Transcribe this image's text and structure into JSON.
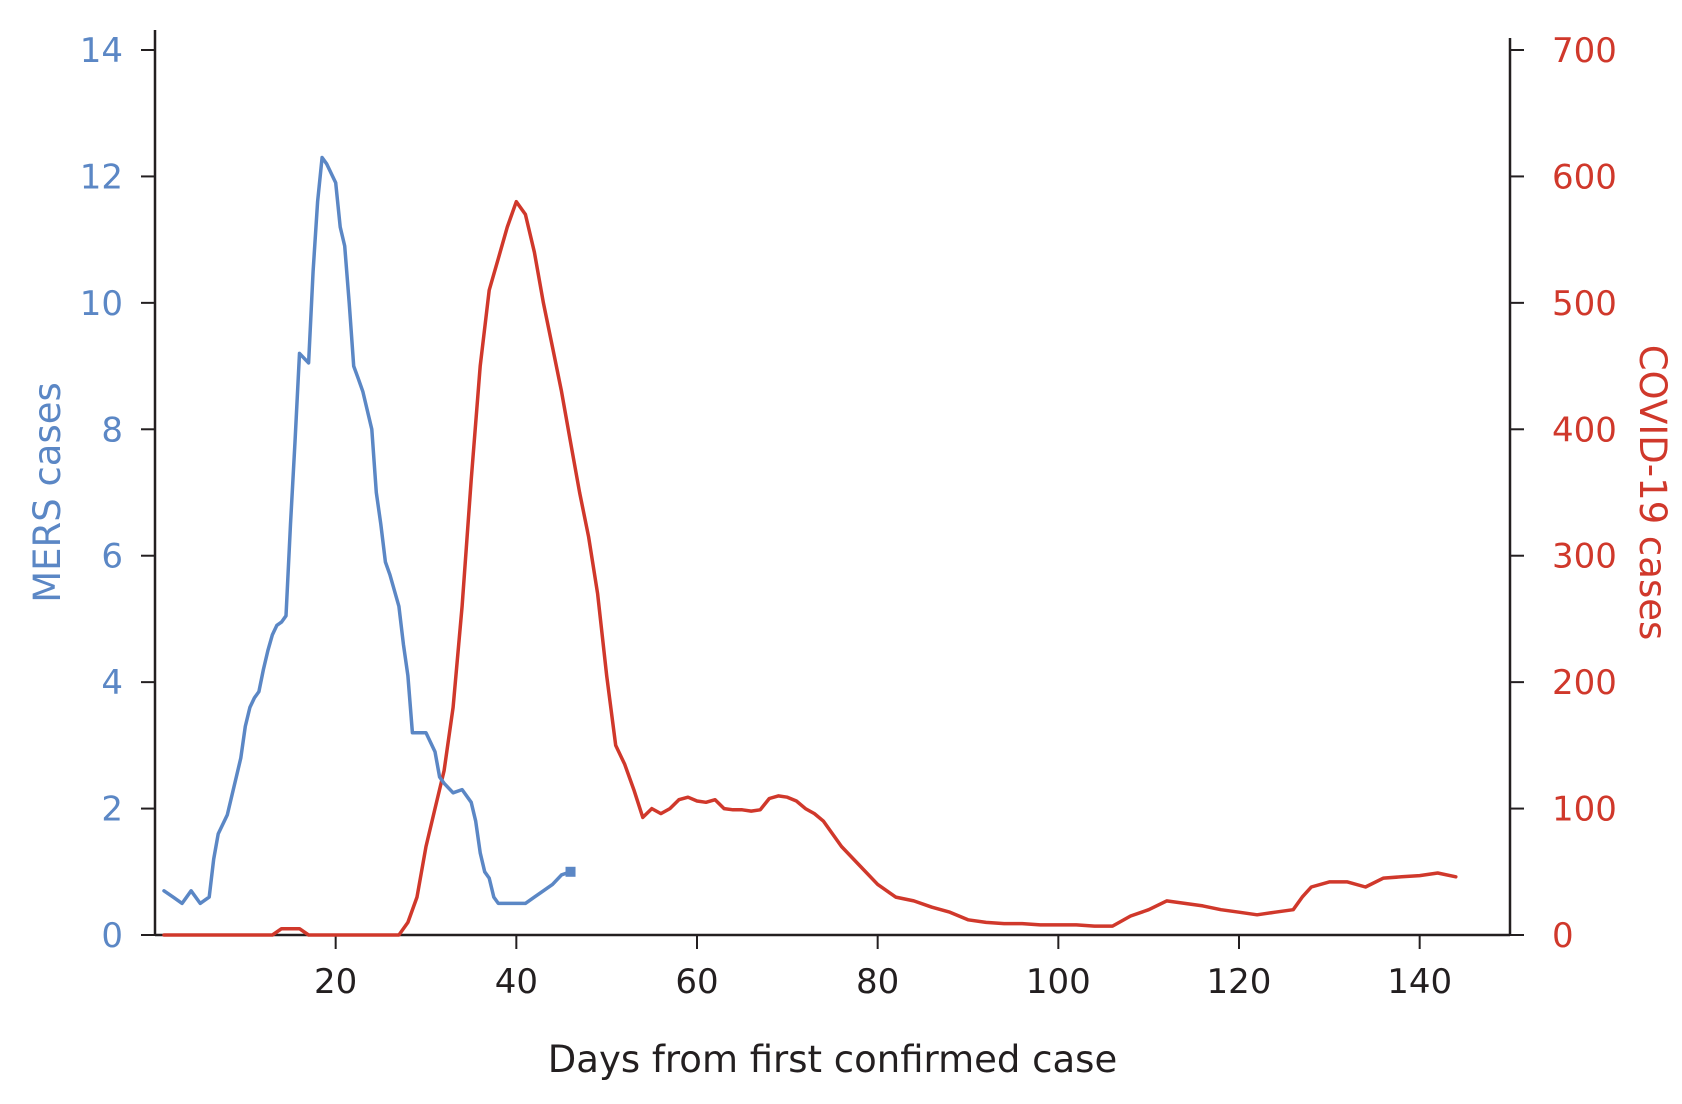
{
  "chart_data": {
    "type": "line",
    "xlabel": "Days from first confirmed case",
    "xlim": [
      0,
      150
    ],
    "xticks": [
      20,
      40,
      60,
      80,
      100,
      120,
      140
    ],
    "left_axis": {
      "label": "MERS cases",
      "ylim": [
        0,
        14
      ],
      "ticks": [
        0,
        2,
        4,
        6,
        8,
        10,
        12,
        14
      ],
      "color": "#5b87c5"
    },
    "right_axis": {
      "label": "COVID-19 cases",
      "ylim": [
        0,
        700
      ],
      "ticks": [
        0,
        100,
        200,
        300,
        400,
        500,
        600,
        700
      ],
      "color": "#d0382b"
    },
    "axis_color": "#231f20",
    "series": [
      {
        "name": "MERS cases",
        "axis": "left",
        "color": "#5b87c5",
        "end_marker": "square",
        "x": [
          1,
          2,
          3,
          4,
          5,
          6,
          6.5,
          7,
          8,
          8.5,
          9,
          9.5,
          10,
          10.5,
          11,
          11.5,
          12,
          12.5,
          13,
          13.5,
          14,
          14.5,
          15,
          15.5,
          16,
          17,
          17.5,
          18,
          18.5,
          19,
          20,
          20.5,
          21,
          21.5,
          22,
          22.5,
          23,
          24,
          24.5,
          25,
          25.5,
          26,
          27,
          27.5,
          28,
          28.5,
          29,
          29.5,
          30,
          31,
          31.5,
          32,
          33,
          34,
          35,
          35.5,
          36,
          36.5,
          37,
          37.5,
          38,
          39,
          40,
          41,
          42,
          43,
          44,
          45,
          46
        ],
        "values": [
          0.7,
          0.6,
          0.5,
          0.7,
          0.5,
          0.6,
          1.2,
          1.6,
          1.9,
          2.2,
          2.5,
          2.8,
          3.3,
          3.6,
          3.75,
          3.85,
          4.2,
          4.5,
          4.75,
          4.9,
          4.95,
          5.05,
          6.5,
          7.8,
          9.2,
          9.05,
          10.5,
          11.6,
          12.3,
          12.2,
          11.9,
          11.2,
          10.9,
          10.0,
          9.0,
          8.8,
          8.6,
          8.0,
          7.0,
          6.5,
          5.9,
          5.7,
          5.2,
          4.6,
          4.1,
          3.2,
          3.2,
          3.2,
          3.2,
          2.9,
          2.5,
          2.4,
          2.25,
          2.3,
          2.1,
          1.8,
          1.3,
          1.0,
          0.9,
          0.6,
          0.5,
          0.5,
          0.5,
          0.5,
          0.6,
          0.7,
          0.8,
          0.95,
          1.0
        ]
      },
      {
        "name": "COVID-19 cases",
        "axis": "right",
        "color": "#d0382b",
        "x": [
          1,
          5,
          10,
          13,
          14,
          15,
          16,
          17,
          18,
          20,
          24,
          26,
          27,
          28,
          29,
          30,
          31,
          32,
          33,
          34,
          35,
          36,
          37,
          38,
          39,
          40,
          41,
          42,
          43,
          44,
          45,
          46,
          47,
          48,
          49,
          50,
          51,
          52,
          53,
          54,
          55,
          56,
          57,
          58,
          59,
          60,
          61,
          62,
          63,
          64,
          65,
          66,
          67,
          68,
          69,
          70,
          71,
          72,
          73,
          74,
          75,
          76,
          78,
          80,
          82,
          84,
          86,
          88,
          90,
          92,
          94,
          96,
          98,
          100,
          102,
          104,
          106,
          108,
          110,
          112,
          114,
          116,
          118,
          120,
          122,
          124,
          126,
          127,
          128,
          130,
          132,
          134,
          136,
          138,
          140,
          142,
          144
        ],
        "values": [
          0,
          0,
          0,
          0,
          5,
          5,
          5,
          0,
          0,
          0,
          0,
          0,
          0,
          10,
          30,
          70,
          100,
          130,
          180,
          260,
          360,
          450,
          510,
          535,
          560,
          580,
          570,
          540,
          500,
          465,
          430,
          390,
          350,
          315,
          270,
          205,
          150,
          135,
          115,
          93,
          100,
          96,
          100,
          107,
          109,
          106,
          105,
          107,
          100,
          99,
          99,
          98,
          99,
          108,
          110,
          109,
          106,
          100,
          96,
          90,
          80,
          70,
          55,
          40,
          30,
          27,
          22,
          18,
          12,
          10,
          9,
          9,
          8,
          8,
          8,
          7,
          7,
          15,
          20,
          27,
          25,
          23,
          20,
          18,
          16,
          18,
          20,
          30,
          38,
          42,
          42,
          38,
          45,
          46,
          47,
          49,
          46
        ]
      }
    ]
  }
}
